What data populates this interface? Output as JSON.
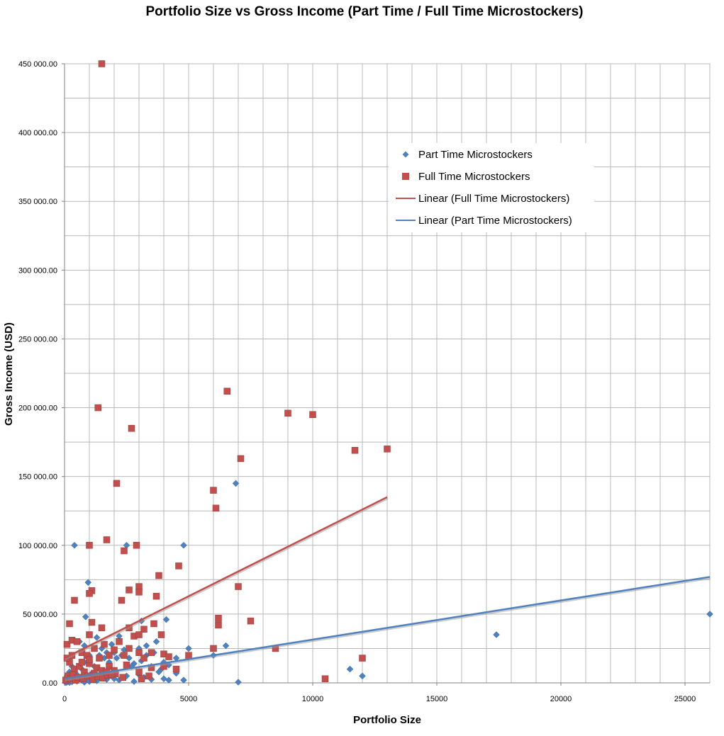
{
  "chart_data": {
    "type": "scatter",
    "title": "Portfolio Size vs Gross Income (Part Time / Full Time Microstockers)",
    "xlabel": "Portfolio Size",
    "ylabel": "Gross Income (USD)",
    "xlim": [
      0,
      26000
    ],
    "ylim": [
      0,
      450000
    ],
    "x_ticks": [
      0,
      5000,
      10000,
      15000,
      20000,
      25000
    ],
    "x_tick_labels": [
      "0",
      "5000",
      "10000",
      "15000",
      "20000",
      "25000"
    ],
    "y_ticks": [
      0,
      50000,
      100000,
      150000,
      200000,
      250000,
      300000,
      350000,
      400000,
      450000
    ],
    "y_tick_labels": [
      "0.00",
      "50 000.00",
      "100 000.00",
      "150 000.00",
      "200 000.00",
      "250 000.00",
      "300 000.00",
      "350 000.00",
      "400 000.00",
      "450 000.00"
    ],
    "grid": true,
    "legend_position": "upper-right",
    "series": [
      {
        "name": "Part Time Microstockers",
        "kind": "points",
        "marker": "diamond",
        "color": "#4f81bd",
        "points": [
          [
            50,
            200
          ],
          [
            100,
            500
          ],
          [
            150,
            1000
          ],
          [
            200,
            300
          ],
          [
            250,
            1500
          ],
          [
            300,
            800
          ],
          [
            400,
            2000
          ],
          [
            500,
            1200
          ],
          [
            600,
            3000
          ],
          [
            700,
            1800
          ],
          [
            800,
            500
          ],
          [
            900,
            2500
          ],
          [
            1000,
            1000
          ],
          [
            1100,
            3500
          ],
          [
            1200,
            2000
          ],
          [
            1300,
            1500
          ],
          [
            1500,
            4000
          ],
          [
            1700,
            2500
          ],
          [
            2000,
            3000
          ],
          [
            2200,
            2000
          ],
          [
            2500,
            5000
          ],
          [
            2800,
            1000
          ],
          [
            3000,
            6000
          ],
          [
            3200,
            4000
          ],
          [
            3500,
            2500
          ],
          [
            3800,
            8000
          ],
          [
            4000,
            3000
          ],
          [
            4200,
            2000
          ],
          [
            4500,
            7000
          ],
          [
            4800,
            2000
          ],
          [
            100,
            5000
          ],
          [
            200,
            8000
          ],
          [
            300,
            12000
          ],
          [
            500,
            6000
          ],
          [
            700,
            10000
          ],
          [
            900,
            15000
          ],
          [
            1200,
            12000
          ],
          [
            1400,
            20000
          ],
          [
            1600,
            18000
          ],
          [
            1800,
            15000
          ],
          [
            2000,
            22000
          ],
          [
            2300,
            20000
          ],
          [
            2600,
            18000
          ],
          [
            3000,
            25000
          ],
          [
            3300,
            20000
          ],
          [
            3600,
            22000
          ],
          [
            4000,
            15000
          ],
          [
            4500,
            18000
          ],
          [
            5000,
            25000
          ],
          [
            6000,
            20000
          ],
          [
            6500,
            27000
          ],
          [
            7000,
            500
          ],
          [
            11500,
            10000
          ],
          [
            12000,
            5000
          ],
          [
            17400,
            35000
          ],
          [
            26000,
            50000
          ],
          [
            400,
            100000
          ],
          [
            2500,
            100000
          ],
          [
            4800,
            100000
          ],
          [
            950,
            73000
          ],
          [
            6900,
            145000
          ],
          [
            850,
            48000
          ],
          [
            3100,
            45000
          ],
          [
            4100,
            46000
          ],
          [
            600,
            30000
          ],
          [
            800,
            27000
          ],
          [
            1000,
            20000
          ],
          [
            1300,
            33000
          ],
          [
            1500,
            25000
          ],
          [
            1700,
            22000
          ],
          [
            1900,
            28000
          ],
          [
            2100,
            18000
          ],
          [
            2200,
            34000
          ],
          [
            2400,
            24000
          ],
          [
            2800,
            14000
          ],
          [
            3100,
            16000
          ],
          [
            3300,
            27000
          ],
          [
            3500,
            12000
          ],
          [
            3700,
            30000
          ],
          [
            3900,
            10000
          ],
          [
            4200,
            13000
          ],
          [
            2700,
            12000
          ],
          [
            1100,
            7000
          ],
          [
            1600,
            6000
          ]
        ]
      },
      {
        "name": "Full Time Microstockers",
        "kind": "points",
        "marker": "square",
        "color": "#c0504d",
        "points": [
          [
            1500,
            450000
          ],
          [
            1350,
            200000
          ],
          [
            6550,
            212000
          ],
          [
            9000,
            196000
          ],
          [
            10000,
            195000
          ],
          [
            2700,
            185000
          ],
          [
            7100,
            163000
          ],
          [
            11700,
            169000
          ],
          [
            13000,
            170000
          ],
          [
            2100,
            145000
          ],
          [
            6000,
            140000
          ],
          [
            6100,
            127000
          ],
          [
            1000,
            100000
          ],
          [
            2900,
            100000
          ],
          [
            1700,
            104000
          ],
          [
            2400,
            96000
          ],
          [
            4600,
            85000
          ],
          [
            3800,
            78000
          ],
          [
            7000,
            70000
          ],
          [
            3000,
            70000
          ],
          [
            2600,
            67500
          ],
          [
            1100,
            67000
          ],
          [
            3000,
            66000
          ],
          [
            3700,
            63000
          ],
          [
            1000,
            65000
          ],
          [
            400,
            60000
          ],
          [
            2300,
            60000
          ],
          [
            6200,
            47000
          ],
          [
            7500,
            45000
          ],
          [
            6200,
            42000
          ],
          [
            3600,
            43000
          ],
          [
            200,
            43000
          ],
          [
            1100,
            44000
          ],
          [
            3200,
            39000
          ],
          [
            2600,
            40000
          ],
          [
            1500,
            40000
          ],
          [
            2800,
            34000
          ],
          [
            3000,
            35000
          ],
          [
            3900,
            35000
          ],
          [
            1000,
            35000
          ],
          [
            100,
            28000
          ],
          [
            300,
            31000
          ],
          [
            500,
            30000
          ],
          [
            700,
            22000
          ],
          [
            900,
            20000
          ],
          [
            1200,
            25000
          ],
          [
            1400,
            18000
          ],
          [
            1600,
            28000
          ],
          [
            1800,
            20000
          ],
          [
            2000,
            24000
          ],
          [
            2200,
            30000
          ],
          [
            2400,
            20000
          ],
          [
            2600,
            25000
          ],
          [
            3000,
            22000
          ],
          [
            3200,
            18000
          ],
          [
            3500,
            22000
          ],
          [
            4000,
            21000
          ],
          [
            4200,
            19000
          ],
          [
            5000,
            20000
          ],
          [
            6000,
            25000
          ],
          [
            8500,
            25000
          ],
          [
            12000,
            18000
          ],
          [
            10500,
            3000
          ],
          [
            200,
            15000
          ],
          [
            400,
            10000
          ],
          [
            600,
            12000
          ],
          [
            800,
            8000
          ],
          [
            1000,
            14000
          ],
          [
            1300,
            11000
          ],
          [
            1500,
            9000
          ],
          [
            1800,
            12000
          ],
          [
            2000,
            9000
          ],
          [
            2500,
            13000
          ],
          [
            3000,
            8000
          ],
          [
            3500,
            11000
          ],
          [
            4000,
            12000
          ],
          [
            4500,
            10000
          ],
          [
            50,
            2000
          ],
          [
            150,
            5000
          ],
          [
            250,
            3000
          ],
          [
            350,
            6000
          ],
          [
            450,
            2000
          ],
          [
            550,
            4000
          ],
          [
            750,
            3000
          ],
          [
            950,
            5000
          ],
          [
            1150,
            2500
          ],
          [
            1350,
            4500
          ],
          [
            1550,
            3500
          ],
          [
            1750,
            5500
          ],
          [
            2050,
            6500
          ],
          [
            2350,
            4000
          ],
          [
            3100,
            3000
          ],
          [
            3400,
            5000
          ],
          [
            100,
            18000
          ],
          [
            300,
            20000
          ],
          [
            700,
            15000
          ],
          [
            1000,
            17000
          ],
          [
            1200,
            7000
          ],
          [
            1700,
            8000
          ],
          [
            1900,
            6000
          ]
        ]
      },
      {
        "name": "Linear (Full Time Microstockers)",
        "kind": "trendline",
        "color": "#c0504d",
        "points": [
          [
            0,
            18000
          ],
          [
            13000,
            135000
          ]
        ]
      },
      {
        "name": "Linear (Part Time Microstockers)",
        "kind": "trendline",
        "color": "#4f81bd",
        "points": [
          [
            0,
            3000
          ],
          [
            26000,
            77000
          ]
        ]
      }
    ]
  }
}
